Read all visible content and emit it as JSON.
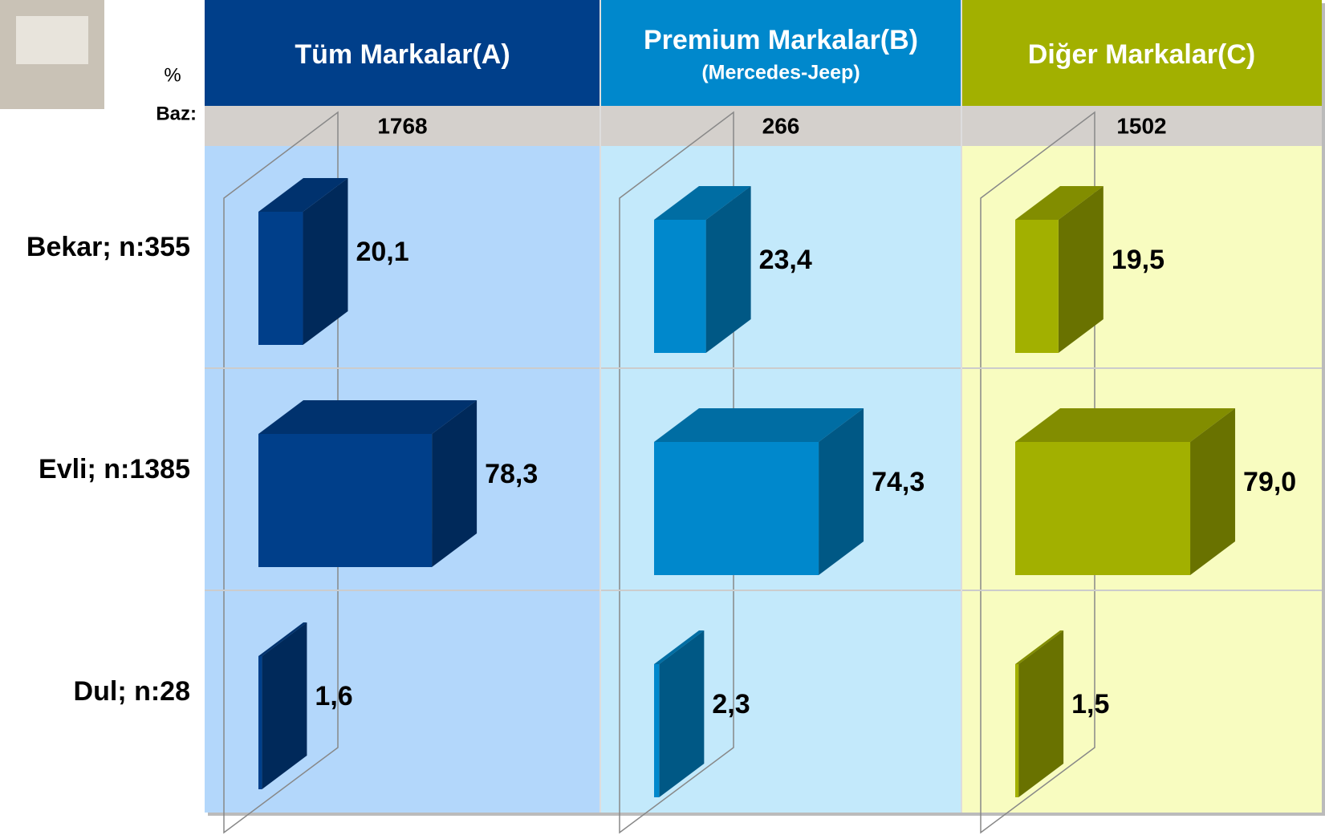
{
  "chart_data": {
    "type": "bar",
    "percent_label": "%",
    "base_label": "Baz:",
    "categories": [
      "Bekar; n:355",
      "Evli; n:1385",
      "Dul; n:28"
    ],
    "series": [
      {
        "name": "Tüm Markalar(A)",
        "color": "#003f8a",
        "base": 1768,
        "values": [
          20.1,
          78.3,
          1.6
        ],
        "value_labels": [
          "20,1",
          "78,3",
          "1,6"
        ]
      },
      {
        "name": "Premium Markalar(B)",
        "subtitle": "(Mercedes-Jeep)",
        "color": "#0088cc",
        "base": 266,
        "values": [
          23.4,
          74.3,
          2.3
        ],
        "value_labels": [
          "23,4",
          "74,3",
          "2,3"
        ]
      },
      {
        "name": "Diğer Markalar(C)",
        "color": "#a2b000",
        "base": 1502,
        "values": [
          19.5,
          79.0,
          1.5
        ],
        "value_labels": [
          "19,5",
          "79,0",
          "1,5"
        ]
      }
    ]
  }
}
